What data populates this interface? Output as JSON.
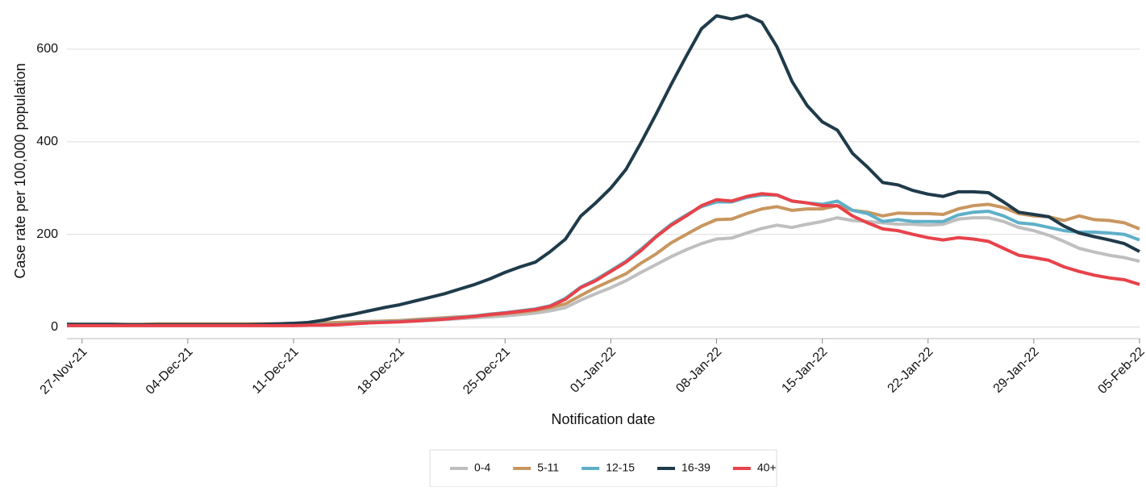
{
  "chart_data": {
    "type": "line",
    "x_label": "Notification date",
    "y_label": "Case rate per 100,000 population",
    "categories": [
      null,
      "27-Nov-21",
      null,
      null,
      null,
      null,
      null,
      null,
      "04-Dec-21",
      null,
      null,
      null,
      null,
      null,
      null,
      "11-Dec-21",
      null,
      null,
      null,
      null,
      null,
      null,
      "18-Dec-21",
      null,
      null,
      null,
      null,
      null,
      null,
      "25-Dec-21",
      null,
      null,
      null,
      null,
      null,
      null,
      "01-Jan-22",
      null,
      null,
      null,
      null,
      null,
      null,
      "08-Jan-22",
      null,
      null,
      null,
      null,
      null,
      null,
      "15-Jan-22",
      null,
      null,
      null,
      null,
      null,
      null,
      "22-Jan-22",
      null,
      null,
      null,
      null,
      null,
      null,
      "29-Jan-22",
      null,
      null,
      null,
      null,
      null,
      null,
      "05-Feb-22"
    ],
    "series": [
      {
        "name": "0-4",
        "color": "#bfbfbf",
        "values": [
          5,
          5,
          5,
          5,
          5,
          5,
          5,
          5,
          5,
          5,
          5,
          5,
          5,
          5,
          5,
          6,
          6,
          7,
          8,
          9,
          10,
          11,
          12,
          13,
          14,
          16,
          18,
          20,
          22,
          24,
          27,
          30,
          35,
          42,
          58,
          72,
          85,
          100,
          118,
          135,
          152,
          167,
          180,
          190,
          192,
          203,
          213,
          220,
          215,
          222,
          228,
          236,
          230,
          228,
          225,
          222,
          222,
          220,
          222,
          233,
          236,
          236,
          228,
          215,
          208,
          198,
          185,
          170,
          162,
          155,
          150,
          142
        ]
      },
      {
        "name": "5-11",
        "color": "#c8965f",
        "values": [
          6,
          6,
          6,
          6,
          6,
          6,
          7,
          7,
          7,
          7,
          7,
          7,
          7,
          7,
          7,
          8,
          8,
          9,
          10,
          11,
          12,
          13,
          14,
          16,
          18,
          20,
          22,
          24,
          26,
          29,
          32,
          36,
          42,
          50,
          68,
          85,
          100,
          115,
          138,
          158,
          182,
          200,
          218,
          232,
          233,
          245,
          255,
          260,
          252,
          255,
          255,
          262,
          252,
          248,
          240,
          246,
          245,
          245,
          243,
          255,
          262,
          265,
          258,
          245,
          240,
          238,
          230,
          240,
          232,
          230,
          225,
          212
        ]
      },
      {
        "name": "12-15",
        "color": "#5fafc8",
        "values": [
          4,
          4,
          4,
          4,
          4,
          4,
          4,
          4,
          4,
          4,
          4,
          4,
          4,
          4,
          4,
          4,
          5,
          5,
          6,
          8,
          10,
          11,
          12,
          14,
          16,
          18,
          21,
          24,
          28,
          31,
          35,
          39,
          46,
          62,
          86,
          102,
          122,
          142,
          168,
          196,
          222,
          242,
          260,
          270,
          270,
          280,
          285,
          285,
          272,
          268,
          265,
          272,
          252,
          245,
          228,
          232,
          228,
          228,
          228,
          242,
          248,
          250,
          240,
          225,
          222,
          215,
          208,
          205,
          205,
          203,
          200,
          188
        ]
      },
      {
        "name": "16-39",
        "color": "#1f3b4a",
        "values": [
          6,
          6,
          6,
          6,
          5,
          5,
          5,
          5,
          5,
          5,
          5,
          5,
          5,
          6,
          7,
          8,
          10,
          15,
          22,
          28,
          35,
          42,
          48,
          56,
          64,
          72,
          82,
          92,
          104,
          118,
          130,
          140,
          163,
          190,
          239,
          268,
          300,
          340,
          398,
          460,
          524,
          585,
          644,
          672,
          665,
          673,
          658,
          605,
          530,
          478,
          443,
          425,
          375,
          345,
          312,
          307,
          295,
          287,
          282,
          292,
          292,
          290,
          270,
          248,
          243,
          238,
          218,
          203,
          195,
          188,
          180,
          163
        ]
      },
      {
        "name": "40+",
        "color": "#e8424a",
        "values": [
          3,
          3,
          3,
          3,
          3,
          3,
          3,
          3,
          3,
          3,
          3,
          3,
          3,
          3,
          3,
          3,
          4,
          4,
          5,
          7,
          9,
          10,
          11,
          13,
          15,
          17,
          20,
          23,
          27,
          30,
          34,
          38,
          45,
          60,
          85,
          100,
          120,
          140,
          165,
          195,
          220,
          240,
          262,
          275,
          272,
          282,
          288,
          285,
          272,
          268,
          262,
          262,
          240,
          225,
          212,
          208,
          200,
          193,
          188,
          193,
          190,
          185,
          170,
          155,
          150,
          144,
          130,
          120,
          112,
          106,
          102,
          92
        ]
      }
    ],
    "ylim": [
      -25,
      680
    ],
    "yticks": [
      0,
      200,
      400,
      600
    ],
    "grid": true
  }
}
